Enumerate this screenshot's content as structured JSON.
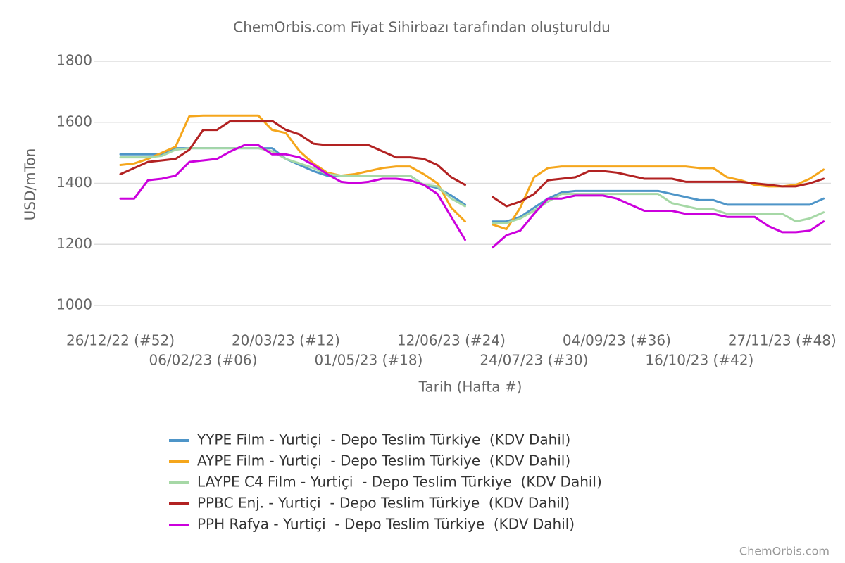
{
  "chart_data": {
    "type": "line",
    "title": "ChemOrbis.com Fiyat Sihirbazı tarafından oluşturuldu",
    "xlabel": "Tarih (Hafta #)",
    "ylabel": "USD/mTon",
    "source": "ChemOrbis.com",
    "categories": [
      "26/12/22 (#52)",
      null,
      null,
      null,
      null,
      null,
      "06/02/23 (#06)",
      null,
      null,
      null,
      null,
      null,
      "20/03/23 (#12)",
      null,
      null,
      null,
      null,
      null,
      "01/05/23 (#18)",
      null,
      null,
      null,
      null,
      null,
      "12/06/23 (#24)",
      null,
      null,
      null,
      null,
      null,
      "24/07/23 (#30)",
      null,
      null,
      null,
      null,
      null,
      "04/09/23 (#36)",
      null,
      null,
      null,
      null,
      null,
      "16/10/23 (#42)",
      null,
      null,
      null,
      null,
      null,
      "27/11/23 (#48)",
      null,
      null,
      null
    ],
    "ylim": [
      1000,
      1800
    ],
    "yticks": [
      1000,
      1200,
      1400,
      1600,
      1800
    ],
    "grid": true,
    "legend": "bottom",
    "series": [
      {
        "name": "YYPE Film - Yurtiçi  - Depo Teslim Türkiye  (KDV Dahil)",
        "color": "#4e95c8",
        "values": [
          1495,
          1495,
          1495,
          1495,
          1515,
          1515,
          1515,
          1515,
          1515,
          1515,
          1515,
          1515,
          1480,
          1460,
          1440,
          1425,
          1425,
          1425,
          1425,
          1425,
          1425,
          1425,
          1395,
          1385,
          1360,
          1330,
          null,
          1275,
          1275,
          1290,
          1320,
          1350,
          1370,
          1375,
          1375,
          1375,
          1375,
          1375,
          1375,
          1375,
          1365,
          1355,
          1345,
          1345,
          1330,
          1330,
          1330,
          1330,
          1330,
          1330,
          1330,
          1350
        ]
      },
      {
        "name": "AYPE Film - Yurtiçi  - Depo Teslim Türkiye  (KDV Dahil)",
        "color": "#f5a61c",
        "values": [
          1460,
          1465,
          1480,
          1500,
          1520,
          1620,
          1622,
          1622,
          1622,
          1622,
          1622,
          1575,
          1565,
          1505,
          1465,
          1435,
          1425,
          1430,
          1440,
          1450,
          1455,
          1455,
          1430,
          1400,
          1320,
          1275,
          null,
          1265,
          1250,
          1320,
          1420,
          1450,
          1455,
          1455,
          1455,
          1455,
          1455,
          1455,
          1455,
          1455,
          1455,
          1455,
          1450,
          1450,
          1420,
          1410,
          1395,
          1390,
          1390,
          1395,
          1415,
          1445
        ]
      },
      {
        "name": "LAYPE C4 Film - Yurtiçi  - Depo Teslim Türkiye  (KDV Dahil)",
        "color": "#a6d8a6",
        "values": [
          1485,
          1485,
          1485,
          1490,
          1510,
          1515,
          1515,
          1515,
          1515,
          1515,
          1515,
          1505,
          1480,
          1465,
          1450,
          1430,
          1425,
          1425,
          1425,
          1425,
          1425,
          1425,
          1395,
          1390,
          1350,
          1325,
          null,
          1270,
          1270,
          1285,
          1310,
          1340,
          1365,
          1365,
          1365,
          1365,
          1365,
          1365,
          1365,
          1365,
          1335,
          1325,
          1315,
          1315,
          1300,
          1300,
          1300,
          1300,
          1300,
          1275,
          1285,
          1305
        ]
      },
      {
        "name": "PPBC Enj. - Yurtiçi  - Depo Teslim Türkiye  (KDV Dahil)",
        "color": "#b22222",
        "values": [
          1430,
          1450,
          1470,
          1475,
          1480,
          1510,
          1575,
          1575,
          1605,
          1605,
          1605,
          1605,
          1575,
          1560,
          1530,
          1525,
          1525,
          1525,
          1525,
          1505,
          1485,
          1485,
          1480,
          1460,
          1420,
          1395,
          null,
          1355,
          1325,
          1340,
          1365,
          1410,
          1415,
          1420,
          1440,
          1440,
          1435,
          1425,
          1415,
          1415,
          1415,
          1405,
          1405,
          1405,
          1405,
          1405,
          1400,
          1395,
          1390,
          1390,
          1400,
          1415
        ]
      },
      {
        "name": "PPH Rafya - Yurtiçi  - Depo Teslim Türkiye  (KDV Dahil)",
        "color": "#cc00dd",
        "values": [
          1350,
          1350,
          1410,
          1415,
          1425,
          1470,
          1475,
          1480,
          1505,
          1525,
          1525,
          1495,
          1495,
          1485,
          1460,
          1430,
          1405,
          1400,
          1405,
          1415,
          1415,
          1410,
          1395,
          1365,
          1290,
          1215,
          null,
          1190,
          1230,
          1245,
          1300,
          1350,
          1350,
          1360,
          1360,
          1360,
          1350,
          1330,
          1310,
          1310,
          1310,
          1300,
          1300,
          1300,
          1290,
          1290,
          1290,
          1260,
          1240,
          1240,
          1245,
          1275
        ]
      }
    ]
  }
}
